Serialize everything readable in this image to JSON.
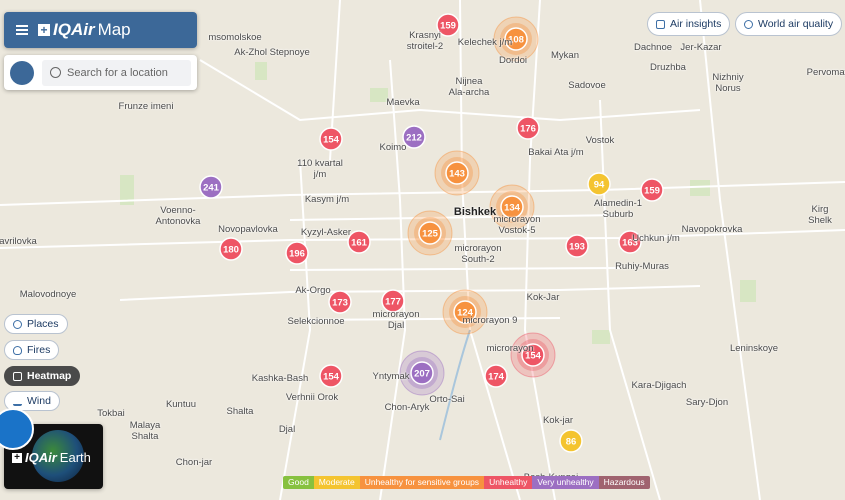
{
  "header": {
    "logo": "IQAir",
    "title": "Map"
  },
  "search": {
    "placeholder": "Search for a location"
  },
  "top_buttons": [
    "Air insights",
    "World air quality"
  ],
  "layers": [
    "Places",
    "Fires",
    "Heatmap",
    "Wind"
  ],
  "earth_card": {
    "logo": "IQAir",
    "title": "Earth"
  },
  "legend": [
    {
      "label": "Good",
      "color": "#87c13f"
    },
    {
      "label": "Moderate",
      "color": "#f4c430"
    },
    {
      "label": "Unhealthy for sensitive groups",
      "color": "#f7923f"
    },
    {
      "label": "Unhealthy",
      "color": "#ee5565"
    },
    {
      "label": "Very unhealthy",
      "color": "#9c6fc2"
    },
    {
      "label": "Hazardous",
      "color": "#a0636f"
    }
  ],
  "markers": [
    {
      "value": 159,
      "color": "#ee5565",
      "cluster": false
    },
    {
      "value": 108,
      "color": "#f7923f",
      "cluster": true
    },
    {
      "value": 176,
      "color": "#ee5565",
      "cluster": false
    },
    {
      "value": 154,
      "color": "#ee5565",
      "cluster": false
    },
    {
      "value": 212,
      "color": "#9c6fc2",
      "cluster": false
    },
    {
      "value": 143,
      "color": "#f7923f",
      "cluster": true
    },
    {
      "value": 94,
      "color": "#f4c430",
      "cluster": false
    },
    {
      "value": 159,
      "color": "#ee5565",
      "cluster": false
    },
    {
      "value": 241,
      "color": "#9c6fc2",
      "cluster": false
    },
    {
      "value": 134,
      "color": "#f7923f",
      "cluster": true
    },
    {
      "value": 125,
      "color": "#f7923f",
      "cluster": true
    },
    {
      "value": 180,
      "color": "#ee5565",
      "cluster": false
    },
    {
      "value": 196,
      "color": "#ee5565",
      "cluster": false
    },
    {
      "value": 161,
      "color": "#ee5565",
      "cluster": false
    },
    {
      "value": 193,
      "color": "#ee5565",
      "cluster": false
    },
    {
      "value": 163,
      "color": "#ee5565",
      "cluster": false
    },
    {
      "value": 173,
      "color": "#ee5565",
      "cluster": false
    },
    {
      "value": 177,
      "color": "#ee5565",
      "cluster": false
    },
    {
      "value": 124,
      "color": "#f7923f",
      "cluster": true
    },
    {
      "value": 154,
      "color": "#ee5565",
      "cluster": true
    },
    {
      "value": 207,
      "color": "#9c6fc2",
      "cluster": true
    },
    {
      "value": 154,
      "color": "#ee5565",
      "cluster": false
    },
    {
      "value": 174,
      "color": "#ee5565",
      "cluster": false
    },
    {
      "value": 86,
      "color": "#f4c430",
      "cluster": false
    }
  ],
  "places": [
    "msomolskoe",
    "Ak-Zhol Stepnoye",
    "Krasnyi\nstroitel-2",
    "Kelechek j/m",
    "Dordoi",
    "Mykan",
    "Dachnoe",
    "Jer-Kazar",
    "Druzhba",
    "Nizhniy\nNorus",
    "Pervomay",
    "Frunze imeni",
    "Maevka",
    "Nijnea\nAla-archa",
    "Sadovoe",
    "Vostok",
    "Bakai Ata j/m",
    "Koimo",
    "110 kvartal\nj/m",
    "Kasym j/m",
    "Voenno-\nAntonovka",
    "Novopavlovka",
    "Kyzyl-Asker",
    "Bishkek",
    "microrayon\nVostok-5",
    "Alamedin-1\nSuburb",
    "Kirg Shelk",
    "Navopokrovka",
    "Uchkun j/m",
    "Ruhiy-Muras",
    "microrayon\nSouth-2",
    "avrilovka",
    "Ak-Orgo",
    "Kok-Jar",
    "Malovodnoye",
    "Selekcionnoe",
    "microrayon\nDjal",
    "microrayon 9",
    "microrayon",
    "Leninskoye",
    "Kashka-Bash",
    "Yntymak",
    "Verhnii Orok",
    "Orto-Sai",
    "Chon-Aryk",
    "Kara-Djigach",
    "Sary-Djon",
    "Tokbai",
    "Kuntuu",
    "Shalta",
    "Malaya\nShalta",
    "Djal",
    "Kok-jar",
    "Chon-jar",
    "Besh-Kungei"
  ]
}
